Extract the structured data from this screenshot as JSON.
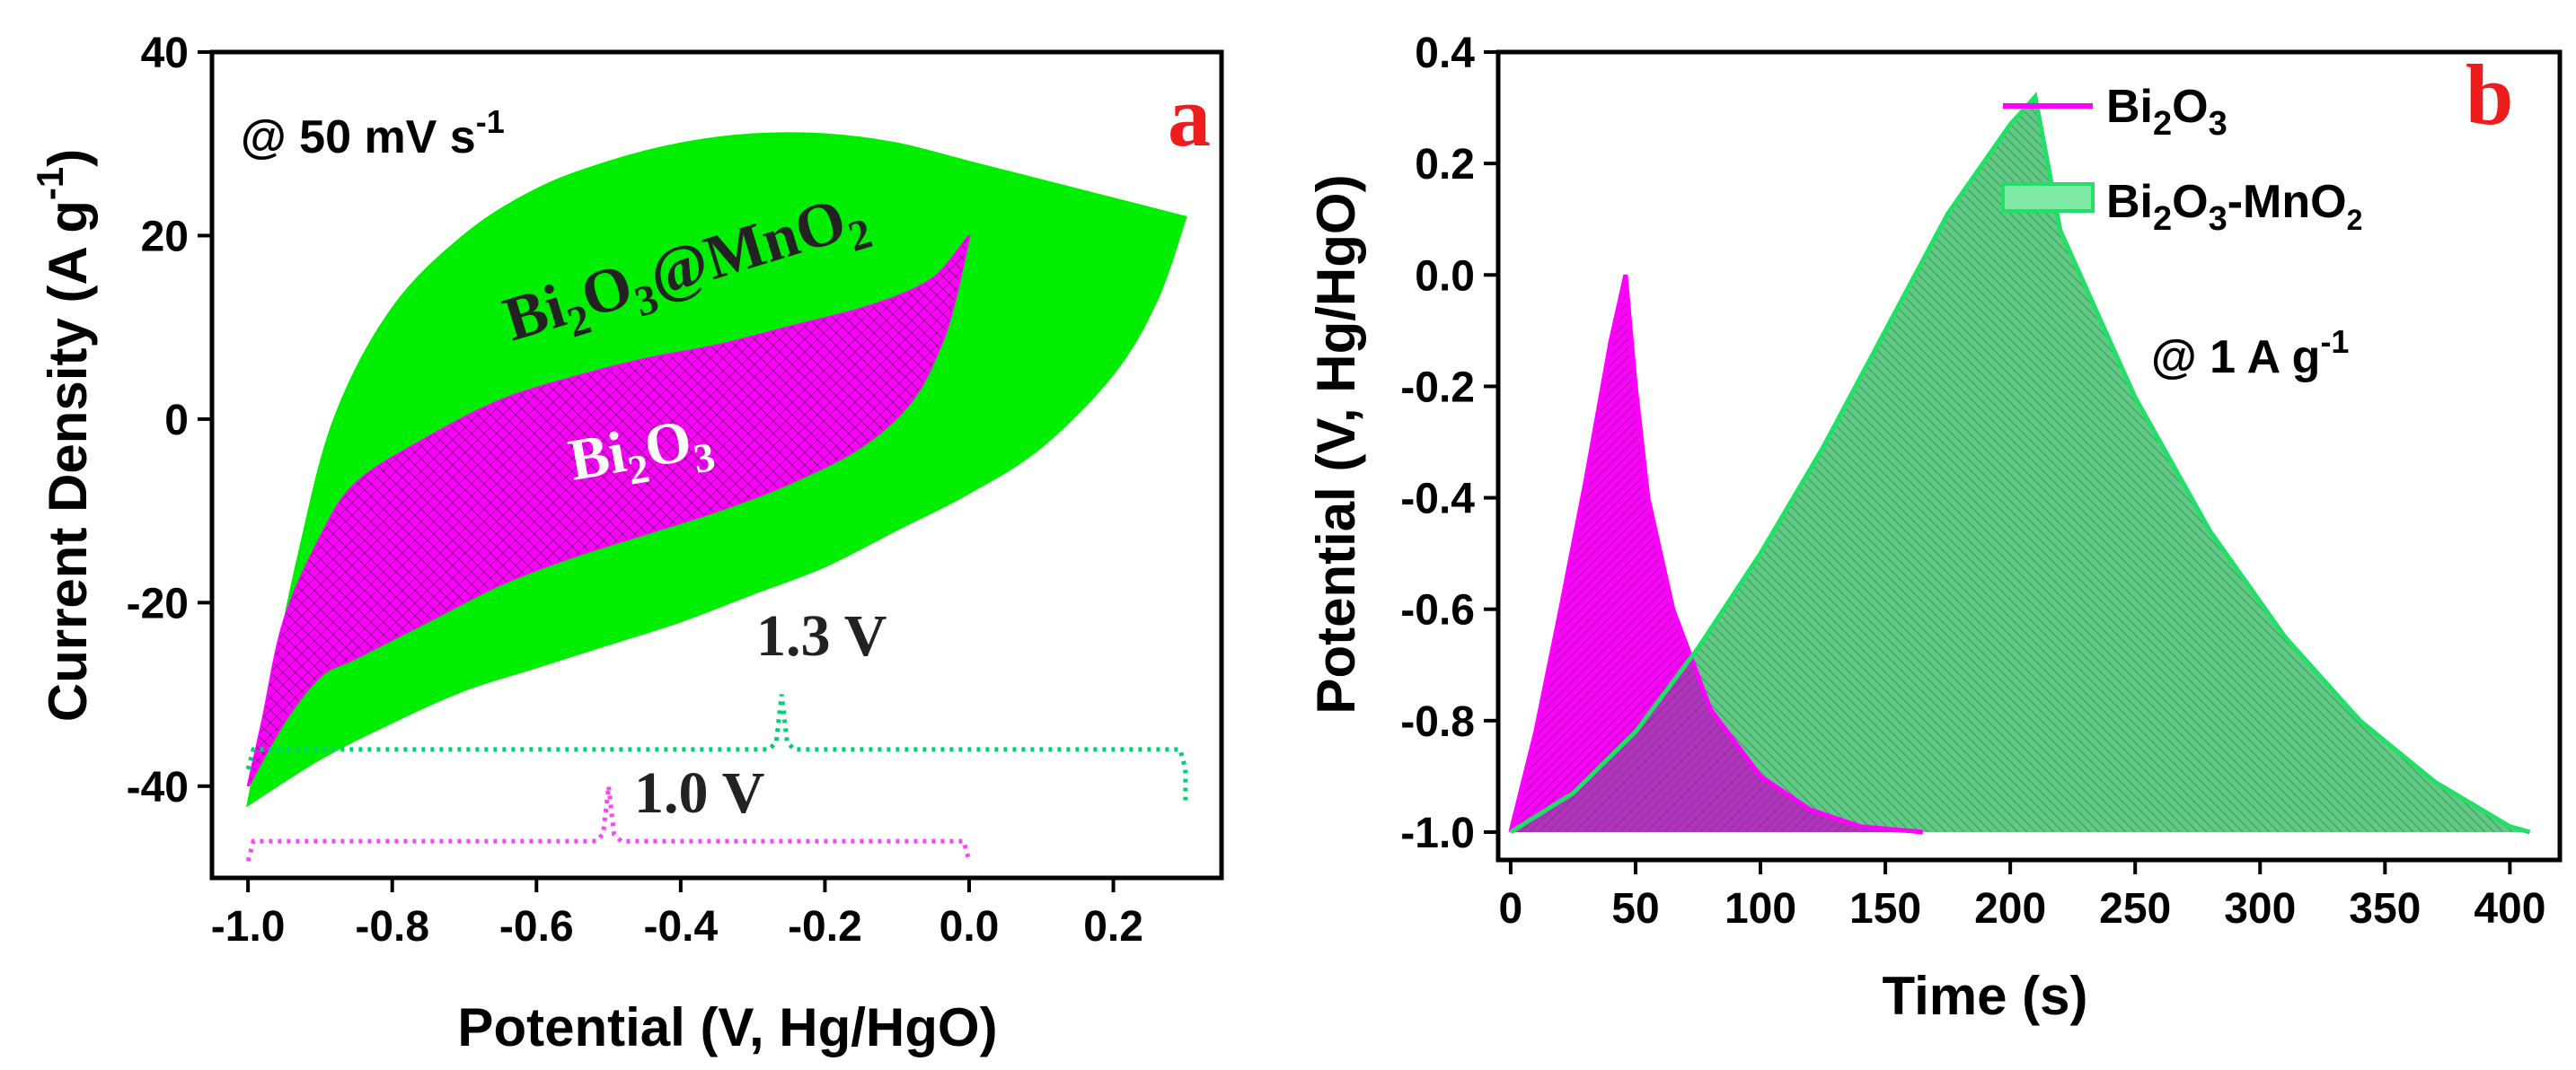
{
  "chart_data": [
    {
      "panel": "a",
      "type": "area",
      "xlabel": "Potential (V, Hg/HgO)",
      "ylabel": "Current Density (A g",
      "ylabel_sup": "-1",
      "ylabel_end": ")",
      "xlim": [
        -1.05,
        0.35
      ],
      "ylim": [
        -50,
        40
      ],
      "xticks": [
        -1.0,
        -0.8,
        -0.6,
        -0.4,
        -0.2,
        0.0,
        0.2
      ],
      "xtick_labels": [
        "-1.0",
        "-0.8",
        "-0.6",
        "-0.4",
        "-0.2",
        "0.0",
        "0.2"
      ],
      "yticks": [
        -40,
        -20,
        0,
        20,
        40
      ],
      "ytick_labels": [
        "-40",
        "-20",
        "0",
        "20",
        "40"
      ],
      "annotation": {
        "text": "@ 50 mV s",
        "sup": "-1"
      },
      "series": [
        {
          "color": "#00ee00",
          "label_main": "Bi",
          "label_sub1": "2",
          "label_mid": "O",
          "label_sub2": "3",
          "label_tail": "@MnO",
          "label_sub3": "2",
          "upper": {
            "x": [
              -1.0,
              -0.97,
              -0.93,
              -0.88,
              -0.8,
              -0.7,
              -0.6,
              -0.5,
              -0.4,
              -0.3,
              -0.2,
              -0.1,
              0.0,
              0.1,
              0.2,
              0.3
            ],
            "y": [
              -42,
              -30,
              -15,
              0,
              12,
              20,
              25,
              28,
              30,
              31,
              31,
              30,
              28,
              26,
              24,
              22
            ]
          },
          "lower": {
            "x": [
              -1.0,
              -0.9,
              -0.8,
              -0.7,
              -0.6,
              -0.5,
              -0.4,
              -0.3,
              -0.2,
              -0.1,
              0.0,
              0.1,
              0.2,
              0.26,
              0.3
            ],
            "y": [
              -42,
              -37,
              -33,
              -29.5,
              -27,
              -24.5,
              -22,
              -19,
              -16,
              -12,
              -8,
              -3,
              5,
              13,
              22
            ]
          }
        },
        {
          "color": "#ff00ff",
          "label_main": "Bi",
          "label_sub1": "2",
          "label_mid": "O",
          "label_sub2": "3",
          "upper": {
            "x": [
              -1.0,
              -0.98,
              -0.95,
              -0.9,
              -0.85,
              -0.75,
              -0.65,
              -0.55,
              -0.45,
              -0.35,
              -0.25,
              -0.15,
              -0.08,
              -0.04,
              0.0
            ],
            "y": [
              -40,
              -33,
              -22,
              -13,
              -7,
              -2,
              2,
              4.5,
              6.5,
              8,
              10,
              12,
              14,
              16,
              20
            ]
          },
          "lower": {
            "x": [
              -1.0,
              -0.95,
              -0.9,
              -0.85,
              -0.75,
              -0.65,
              -0.55,
              -0.45,
              -0.35,
              -0.25,
              -0.15,
              -0.08,
              -0.04,
              -0.02,
              0.0
            ],
            "y": [
              -40,
              -33,
              -28,
              -26,
              -22,
              -18,
              -15,
              -12.5,
              -10,
              -7,
              -3,
              2,
              8,
              13,
              20
            ]
          }
        }
      ],
      "windows": [
        {
          "label": "1.3 V",
          "color": "#00d070",
          "x0": -1.0,
          "x1": 0.3,
          "y": -36,
          "peak_x": -0.26,
          "peak_y": -30
        },
        {
          "label": "1.0 V",
          "color": "#ff44ff",
          "x0": -1.0,
          "x1": 0.0,
          "y": -46,
          "peak_x": -0.5,
          "peak_y": -40
        }
      ]
    },
    {
      "panel": "b",
      "type": "area",
      "xlabel": "Time (s)",
      "ylabel": "Potential (V, Hg/HgO)",
      "xlim": [
        -5,
        420
      ],
      "ylim": [
        -1.05,
        0.4
      ],
      "xticks": [
        0,
        50,
        100,
        150,
        200,
        250,
        300,
        350,
        400
      ],
      "xtick_labels": [
        "0",
        "50",
        "100",
        "150",
        "200",
        "250",
        "300",
        "350",
        "400"
      ],
      "yticks": [
        -1.0,
        -0.8,
        -0.6,
        -0.4,
        -0.2,
        0.0,
        0.2,
        0.4
      ],
      "ytick_labels": [
        "-1.0",
        "-0.8",
        "-0.6",
        "-0.4",
        "-0.2",
        "0.0",
        "0.2",
        "0.4"
      ],
      "annotation": {
        "text": "@ 1 A g",
        "sup": "-1"
      },
      "legend_position": "top-right",
      "series": [
        {
          "name": "Bi2O3",
          "legend_main": "Bi",
          "legend_sub1": "2",
          "legend_mid": "O",
          "legend_sub2": "3",
          "legend_tail": "",
          "legend_sub3": "",
          "color": "#ff00ff",
          "x": [
            0,
            10,
            20,
            30,
            40,
            46,
            50,
            55,
            65,
            80,
            100,
            120,
            140,
            165
          ],
          "y": [
            -1.0,
            -0.82,
            -0.6,
            -0.37,
            -0.12,
            0.0,
            -0.2,
            -0.4,
            -0.6,
            -0.78,
            -0.9,
            -0.96,
            -0.99,
            -1.0
          ]
        },
        {
          "name": "Bi2O3-MnO2",
          "legend_main": "Bi",
          "legend_sub1": "2",
          "legend_mid": "O",
          "legend_sub2": "3",
          "legend_tail": "-MnO",
          "legend_sub3": "2",
          "color": "#22e066",
          "x": [
            0,
            25,
            50,
            75,
            100,
            125,
            150,
            175,
            200,
            210,
            220,
            250,
            280,
            310,
            340,
            370,
            400,
            408
          ],
          "y": [
            -1.0,
            -0.93,
            -0.82,
            -0.67,
            -0.5,
            -0.31,
            -0.1,
            0.11,
            0.27,
            0.32,
            0.08,
            -0.22,
            -0.46,
            -0.65,
            -0.8,
            -0.91,
            -0.99,
            -1.0
          ]
        }
      ]
    }
  ]
}
